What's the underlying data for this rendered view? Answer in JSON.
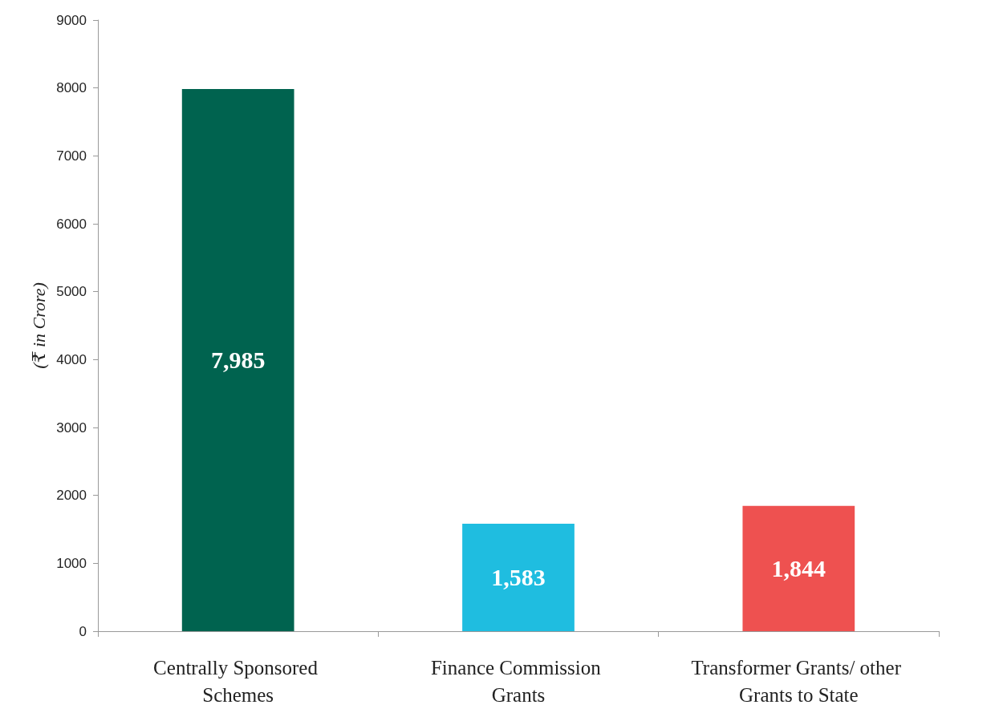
{
  "chart_data": {
    "type": "bar",
    "ylabel": "(₹ in Crore)",
    "categories": [
      "Centrally Sponsored Schemes",
      "Finance Commission Grants",
      "Transformer Grants/ other Grants to State"
    ],
    "values": [
      7985,
      1583,
      1844
    ],
    "colors": [
      "#00634f",
      "#1fbde0",
      "#ee5150"
    ],
    "value_labels": [
      "7,985",
      "1,583",
      "1,844"
    ],
    "ylim": [
      0,
      9000
    ],
    "yticks": [
      0,
      1000,
      2000,
      3000,
      4000,
      5000,
      6000,
      7000,
      8000,
      9000
    ],
    "grid": false
  }
}
